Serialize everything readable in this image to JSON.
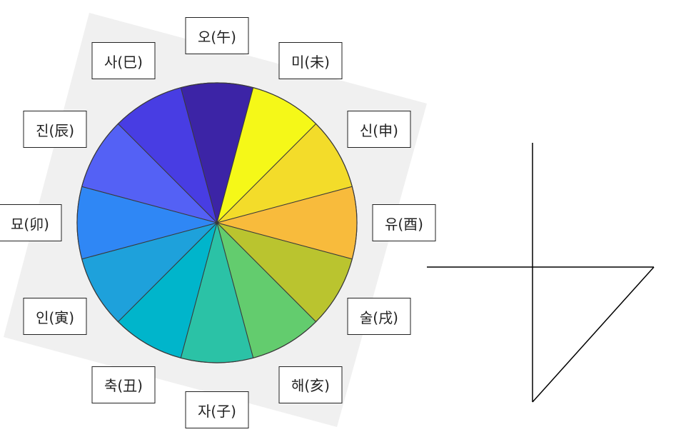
{
  "wheel": {
    "segments": [
      {
        "label": "오(午)",
        "color": "#3c24a6"
      },
      {
        "label": "미(未)",
        "color": "#f5f818"
      },
      {
        "label": "신(申)",
        "color": "#f3dc2a"
      },
      {
        "label": "유(酉)",
        "color": "#f8bb3c"
      },
      {
        "label": "술(戌)",
        "color": "#bac42f"
      },
      {
        "label": "해(亥)",
        "color": "#63cc6e"
      },
      {
        "label": "자(子)",
        "color": "#2bc2a6"
      },
      {
        "label": "축(丑)",
        "color": "#00b5cb"
      },
      {
        "label": "인(寅)",
        "color": "#1ea1db"
      },
      {
        "label": "묘(卯)",
        "color": "#2f87f5"
      },
      {
        "label": "진(辰)",
        "color": "#5461f5"
      },
      {
        "label": "사(巳)",
        "color": "#483de3"
      }
    ],
    "background_color": "#f0f0f0",
    "outline_color": "#3a3a3a"
  },
  "glyph": {
    "stroke_color": "#000000"
  }
}
